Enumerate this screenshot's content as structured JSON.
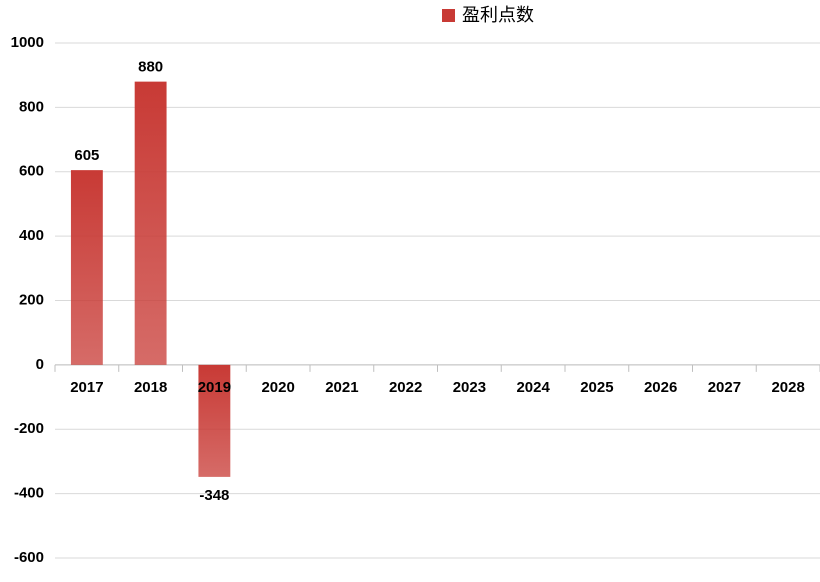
{
  "chart_data": {
    "type": "bar",
    "legend": "盈利点数",
    "categories": [
      "2017",
      "2018",
      "2019",
      "2020",
      "2021",
      "2022",
      "2023",
      "2024",
      "2025",
      "2026",
      "2027",
      "2028"
    ],
    "values": [
      605,
      880,
      -348,
      null,
      null,
      null,
      null,
      null,
      null,
      null,
      null,
      null
    ],
    "color": "#c83a35",
    "ylim": [
      -600,
      1000
    ],
    "yticks": [
      -600,
      -400,
      -200,
      0,
      200,
      400,
      600,
      800,
      1000
    ],
    "grid": true
  }
}
